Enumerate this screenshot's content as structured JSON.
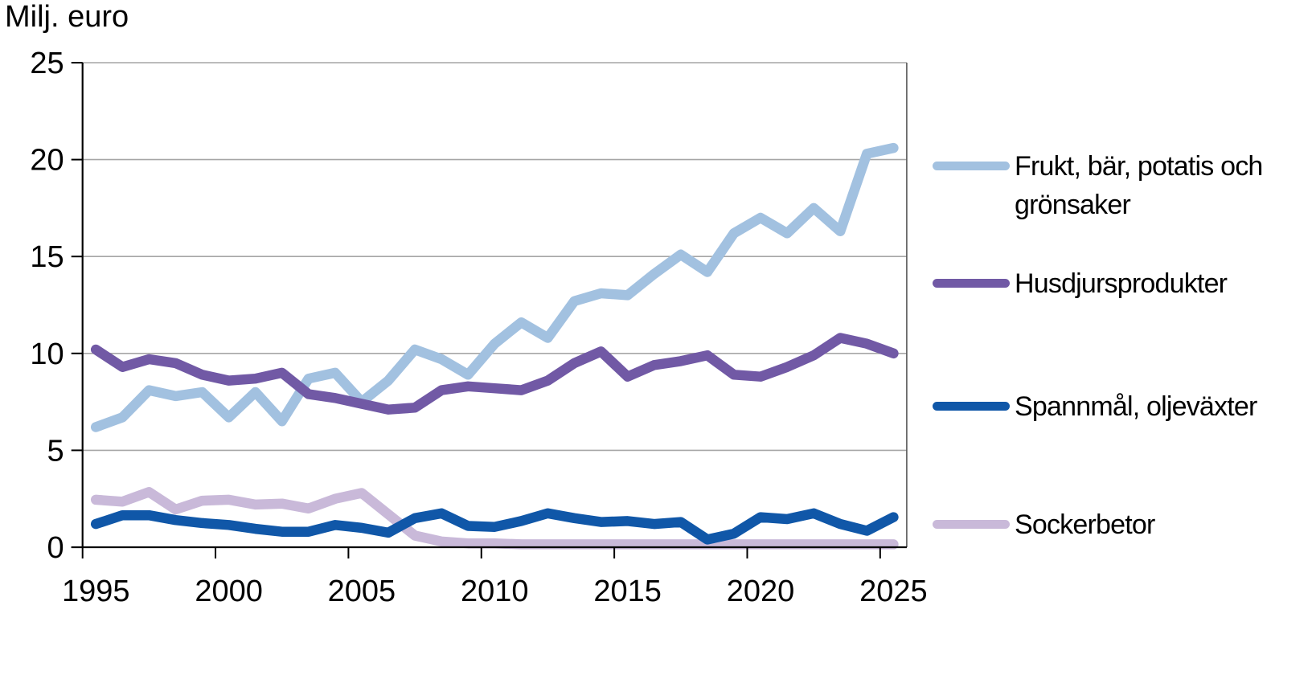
{
  "title": "Milj. euro",
  "chart_data": {
    "type": "line",
    "x": [
      1995,
      1996,
      1997,
      1998,
      1999,
      2000,
      2001,
      2002,
      2003,
      2004,
      2005,
      2006,
      2007,
      2008,
      2009,
      2010,
      2011,
      2012,
      2013,
      2014,
      2015,
      2016,
      2017,
      2018,
      2019,
      2020,
      2021,
      2022,
      2023,
      2024,
      2025
    ],
    "x_tick_labels": [
      "1995",
      "2000",
      "2005",
      "2010",
      "2015",
      "2020",
      "2025"
    ],
    "y_ticks": [
      0,
      5,
      10,
      15,
      20,
      25
    ],
    "ylim": [
      0,
      25
    ],
    "ylabel": "Milj. euro",
    "grid": true,
    "legend_position": "right",
    "series": [
      {
        "name": "Frukt, bär, potatis och grönsaker",
        "color": "#A2C1E0",
        "values": [
          6.2,
          6.7,
          8.1,
          7.8,
          8.0,
          6.7,
          8.0,
          6.5,
          8.7,
          9.0,
          7.5,
          8.6,
          10.2,
          9.7,
          8.9,
          10.5,
          11.6,
          10.8,
          12.7,
          13.1,
          13.0,
          14.1,
          15.1,
          14.2,
          16.2,
          17.0,
          16.2,
          17.5,
          16.3,
          20.3,
          20.6
        ]
      },
      {
        "name": "Husdjursprodukter",
        "color": "#7159A5",
        "values": [
          10.2,
          9.3,
          9.7,
          9.5,
          8.9,
          8.6,
          8.7,
          9.0,
          7.9,
          7.7,
          7.4,
          7.1,
          7.2,
          8.1,
          8.3,
          8.2,
          8.1,
          8.6,
          9.5,
          10.1,
          8.8,
          9.4,
          9.6,
          9.9,
          8.9,
          8.8,
          9.3,
          9.9,
          10.8,
          10.5,
          10.0
        ]
      },
      {
        "name": "Spannmål, oljeväxter",
        "color": "#1057A8",
        "values": [
          1.2,
          1.65,
          1.65,
          1.4,
          1.25,
          1.15,
          0.95,
          0.8,
          0.8,
          1.15,
          1.0,
          0.75,
          1.5,
          1.75,
          1.1,
          1.05,
          1.35,
          1.75,
          1.5,
          1.3,
          1.35,
          1.2,
          1.3,
          0.4,
          0.7,
          1.55,
          1.45,
          1.75,
          1.2,
          0.85,
          1.55
        ]
      },
      {
        "name": "Sockerbetor",
        "color": "#C9B9D9",
        "values": [
          2.45,
          2.35,
          2.85,
          1.95,
          2.4,
          2.45,
          2.2,
          2.25,
          2.0,
          2.5,
          2.8,
          1.7,
          0.6,
          0.3,
          0.2,
          0.2,
          0.15,
          0.15,
          0.15,
          0.15,
          0.15,
          0.15,
          0.15,
          0.15,
          0.15,
          0.15,
          0.15,
          0.15,
          0.15,
          0.15,
          0.15
        ]
      }
    ],
    "colors": {
      "gridline": "#A6A6A6",
      "axis": "#000000",
      "plot_border": "#595959"
    }
  }
}
